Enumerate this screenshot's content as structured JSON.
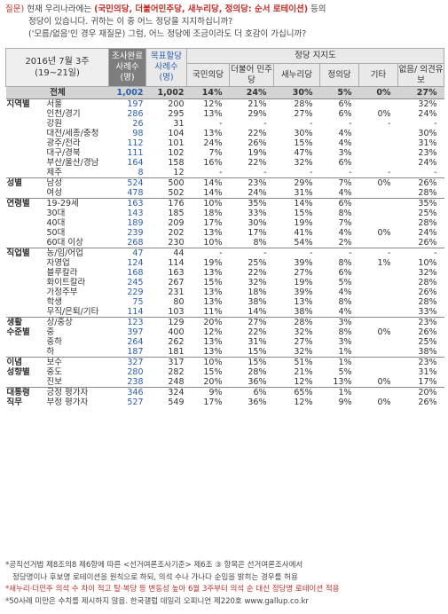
{
  "question": {
    "prefix": "질문)",
    "line1_a": " 현재 우리나라에는 ",
    "line1_red": "(국민의당, 더불어민주당, 새누리당, 정의당: 순서 로테이션)",
    "line1_b": " 등의",
    "line2": "정당이 있습니다. 귀하는 이 중 어느 정당을 지지하십니까?",
    "line3": "('모름/없음'인 경우 재질문) 그럼, 어느 정당에 조금이라도 더 호감이 가십니까?"
  },
  "header": {
    "date_line1": "2016년 7월 3주",
    "date_line2": "(19~21일)",
    "sample_completed": "조사완료 사례수 (명)",
    "sample_target": "목표할당 사례수 (명)",
    "party_support": "정당 지지도",
    "parties": [
      "국민의당",
      "더불어 민주당",
      "새누리당",
      "정의당",
      "기타",
      "없음/ 의견유보"
    ]
  },
  "rows": [
    {
      "group": "전체",
      "sub": "",
      "n1": "1,002",
      "n2": "1,002",
      "v": [
        "14%",
        "24%",
        "30%",
        "5%",
        "0%",
        "27%"
      ],
      "total": true
    },
    {
      "group": "지역별",
      "sub": "서울",
      "n1": "197",
      "n2": "200",
      "v": [
        "12%",
        "21%",
        "28%",
        "6%",
        "",
        "32%"
      ],
      "sep": true
    },
    {
      "group": "",
      "sub": "인천/경기",
      "n1": "286",
      "n2": "295",
      "v": [
        "13%",
        "29%",
        "27%",
        "6%",
        "0%",
        "24%"
      ]
    },
    {
      "group": "",
      "sub": "강원",
      "n1": "26",
      "n2": "31",
      "v": [
        "-",
        "-",
        "-",
        "-",
        "-",
        "-"
      ]
    },
    {
      "group": "",
      "sub": "대전/세종/충청",
      "n1": "98",
      "n2": "104",
      "v": [
        "13%",
        "22%",
        "30%",
        "4%",
        "",
        "30%"
      ]
    },
    {
      "group": "",
      "sub": "광주/전라",
      "n1": "112",
      "n2": "101",
      "v": [
        "24%",
        "26%",
        "15%",
        "4%",
        "",
        "31%"
      ]
    },
    {
      "group": "",
      "sub": "대구/경북",
      "n1": "111",
      "n2": "102",
      "v": [
        "7%",
        "19%",
        "47%",
        "3%",
        "",
        "23%"
      ]
    },
    {
      "group": "",
      "sub": "부산/울산/경남",
      "n1": "164",
      "n2": "158",
      "v": [
        "16%",
        "22%",
        "32%",
        "6%",
        "",
        "24%"
      ]
    },
    {
      "group": "",
      "sub": "제주",
      "n1": "8",
      "n2": "12",
      "v": [
        "-",
        "-",
        "-",
        "-",
        "-",
        "-"
      ]
    },
    {
      "group": "성별",
      "sub": "남성",
      "n1": "524",
      "n2": "500",
      "v": [
        "14%",
        "23%",
        "29%",
        "7%",
        "0%",
        "26%"
      ],
      "sep": true
    },
    {
      "group": "",
      "sub": "여성",
      "n1": "478",
      "n2": "502",
      "v": [
        "14%",
        "24%",
        "31%",
        "4%",
        "",
        "28%"
      ]
    },
    {
      "group": "연령별",
      "sub": "19-29세",
      "n1": "163",
      "n2": "176",
      "v": [
        "10%",
        "35%",
        "14%",
        "6%",
        "",
        "35%"
      ],
      "sep": true
    },
    {
      "group": "",
      "sub": "30대",
      "n1": "143",
      "n2": "185",
      "v": [
        "18%",
        "33%",
        "15%",
        "8%",
        "",
        "25%"
      ]
    },
    {
      "group": "",
      "sub": "40대",
      "n1": "189",
      "n2": "209",
      "v": [
        "17%",
        "30%",
        "19%",
        "7%",
        "",
        "28%"
      ]
    },
    {
      "group": "",
      "sub": "50대",
      "n1": "239",
      "n2": "202",
      "v": [
        "13%",
        "17%",
        "41%",
        "4%",
        "0%",
        "24%"
      ]
    },
    {
      "group": "",
      "sub": "60대 이상",
      "n1": "268",
      "n2": "230",
      "v": [
        "10%",
        "8%",
        "54%",
        "2%",
        "",
        "26%"
      ]
    },
    {
      "group": "직업별",
      "sub": "농/임/어업",
      "n1": "47",
      "n2": "44",
      "v": [
        "-",
        "-",
        "-",
        "-",
        "-",
        "-"
      ],
      "sep": true
    },
    {
      "group": "",
      "sub": "자영업",
      "n1": "124",
      "n2": "114",
      "v": [
        "19%",
        "25%",
        "39%",
        "8%",
        "1%",
        "10%"
      ]
    },
    {
      "group": "",
      "sub": "블루칼라",
      "n1": "168",
      "n2": "163",
      "v": [
        "13%",
        "22%",
        "27%",
        "6%",
        "",
        "32%"
      ]
    },
    {
      "group": "",
      "sub": "화이트칼라",
      "n1": "245",
      "n2": "267",
      "v": [
        "15%",
        "32%",
        "19%",
        "5%",
        "",
        "28%"
      ]
    },
    {
      "group": "",
      "sub": "가정주부",
      "n1": "229",
      "n2": "231",
      "v": [
        "13%",
        "18%",
        "39%",
        "4%",
        "",
        "26%"
      ]
    },
    {
      "group": "",
      "sub": "학생",
      "n1": "75",
      "n2": "80",
      "v": [
        "13%",
        "38%",
        "13%",
        "8%",
        "",
        "28%"
      ]
    },
    {
      "group": "",
      "sub": "무직/은퇴/기타",
      "n1": "114",
      "n2": "103",
      "v": [
        "11%",
        "14%",
        "38%",
        "4%",
        "",
        "33%"
      ]
    },
    {
      "group": "생활",
      "sub": "상/중상",
      "n1": "123",
      "n2": "129",
      "v": [
        "20%",
        "27%",
        "28%",
        "3%",
        "",
        "23%"
      ],
      "sep": true
    },
    {
      "group": "수준별",
      "sub": "중",
      "n1": "397",
      "n2": "400",
      "v": [
        "12%",
        "22%",
        "32%",
        "8%",
        "0%",
        "26%"
      ]
    },
    {
      "group": "",
      "sub": "중하",
      "n1": "264",
      "n2": "262",
      "v": [
        "13%",
        "31%",
        "27%",
        "3%",
        "",
        "25%"
      ]
    },
    {
      "group": "",
      "sub": "하",
      "n1": "187",
      "n2": "181",
      "v": [
        "13%",
        "15%",
        "32%",
        "1%",
        "",
        "38%"
      ]
    },
    {
      "group": "이념",
      "sub": "보수",
      "n1": "327",
      "n2": "317",
      "v": [
        "10%",
        "15%",
        "51%",
        "1%",
        "",
        "23%"
      ],
      "sep": true
    },
    {
      "group": "성향별",
      "sub": "중도",
      "n1": "280",
      "n2": "282",
      "v": [
        "15%",
        "28%",
        "21%",
        "5%",
        "",
        "31%"
      ]
    },
    {
      "group": "",
      "sub": "진보",
      "n1": "238",
      "n2": "248",
      "v": [
        "20%",
        "36%",
        "12%",
        "13%",
        "0%",
        "17%"
      ]
    },
    {
      "group": "대통령",
      "sub": "긍정 평가자",
      "n1": "346",
      "n2": "324",
      "v": [
        "9%",
        "6%",
        "65%",
        "1%",
        "",
        "20%"
      ],
      "sep": true
    },
    {
      "group": "직무",
      "sub": "부정 평가자",
      "n1": "527",
      "n2": "549",
      "v": [
        "17%",
        "36%",
        "12%",
        "9%",
        "0%",
        "26%"
      ]
    }
  ],
  "footer": {
    "line1": "*공직선거법 제8조의8 제6항에 따른 <선거여론조사기준> 제6조 ③ 항목은 선거여론조사에서",
    "line2": "정당명이나 후보명 로테이션을 원칙으로 하되, 의석 수나 가나다 순임을 밝히는 경우를 허용",
    "line3": "*새누리·더민주 의석 수 차이 적고 탈·복당 등 변동성 높아 6월 3주부터 의석 순 대신 정당명 로테이션 적용",
    "line4": "*50사례 미만은 수치를 제시하지 않음. 한국갤럽 데일리 오피니언 제220호 www.gallup.co.kr"
  }
}
